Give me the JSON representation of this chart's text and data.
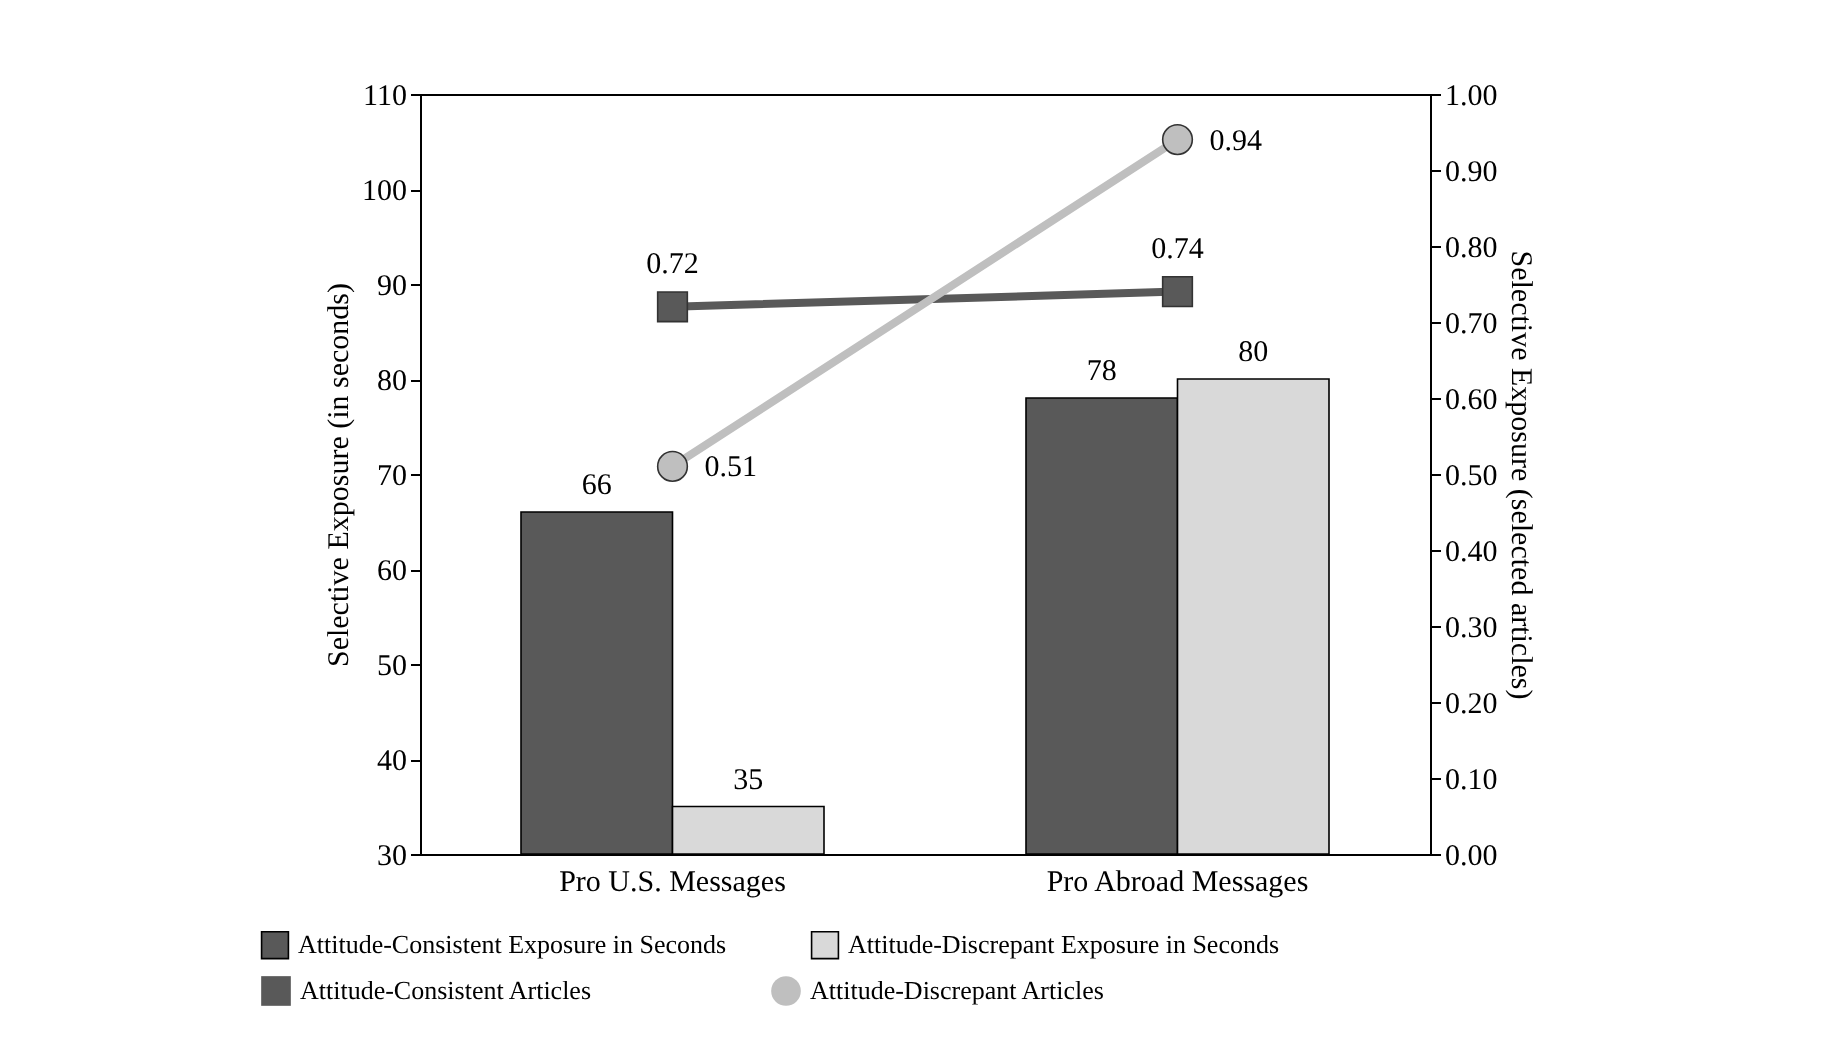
{
  "chart_data": {
    "type": "bar",
    "categories": [
      "Pro U.S. Messages",
      "Pro Abroad Messages"
    ],
    "ylabel": "Selective Exposure  (in seconds)",
    "y2label": "Selective Exposure (selected articles)",
    "ylim": [
      30,
      110
    ],
    "yticks": [
      30,
      40,
      50,
      60,
      70,
      80,
      90,
      100,
      110
    ],
    "y2lim": [
      0,
      1
    ],
    "y2ticks": [
      {
        "value": 0,
        "label": "0.00"
      },
      {
        "value": 0.1,
        "label": "0.10"
      },
      {
        "value": 0.2,
        "label": "0.20"
      },
      {
        "value": 0.3,
        "label": "0.30"
      },
      {
        "value": 0.4,
        "label": "0.40"
      },
      {
        "value": 0.5,
        "label": "0.50"
      },
      {
        "value": 0.6,
        "label": "0.60"
      },
      {
        "value": 0.7,
        "label": "0.70"
      },
      {
        "value": 0.8,
        "label": "0.80"
      },
      {
        "value": 0.9,
        "label": "0.90"
      },
      {
        "value": 1,
        "label": "1.00"
      }
    ],
    "data_labels": true,
    "legend": "bottom",
    "grid": false,
    "series": [
      {
        "name": "Attitude-Consistent Exposure in Seconds",
        "color": "#595959",
        "values": [
          66,
          78
        ]
      },
      {
        "name": "Attitude-Discrepant Exposure in Seconds",
        "color": "#d9d9d9",
        "values": [
          35,
          80
        ]
      },
      {
        "name": "Attitude-Consistent Articles",
        "type": "line",
        "axis": "y2",
        "marker": "square",
        "color": "#595959",
        "values": [
          0.72,
          0.74
        ]
      },
      {
        "name": "Attitude-Discrepant Articles",
        "type": "line",
        "axis": "y2",
        "marker": "circle",
        "color": "#bfbfbf",
        "values": [
          0.51,
          0.94
        ]
      }
    ]
  }
}
